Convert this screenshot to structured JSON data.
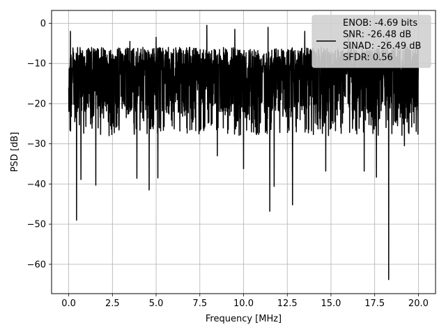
{
  "chart_data": {
    "type": "line",
    "title": "",
    "xlabel": "Frequency [MHz]",
    "ylabel": "PSD [dB]",
    "xlim": [
      -0.98,
      20.98
    ],
    "ylim": [
      -67.3,
      3.2
    ],
    "xticks": [
      0.0,
      2.5,
      5.0,
      7.5,
      10.0,
      12.5,
      15.0,
      17.5,
      20.0
    ],
    "xtick_labels": [
      "0.0",
      "2.5",
      "5.0",
      "7.5",
      "10.0",
      "12.5",
      "15.0",
      "17.5",
      "20.0"
    ],
    "yticks": [
      0,
      -10,
      -20,
      -30,
      -40,
      -50,
      -60
    ],
    "ytick_labels": [
      "0",
      "−10",
      "−20",
      "−30",
      "−40",
      "−50",
      "−60"
    ],
    "grid": true,
    "legend_position": "top-right",
    "series": [
      {
        "color": "#000000",
        "band_upper_peaks": [
          [
            0.0,
            0.0
          ],
          [
            0.1,
            -2.0
          ],
          [
            3.5,
            -4.5
          ],
          [
            5.0,
            -3.5
          ],
          [
            7.9,
            -0.5
          ],
          [
            9.5,
            -1.5
          ],
          [
            11.4,
            -1.0
          ],
          [
            13.5,
            -2.0
          ],
          [
            16.0,
            -3.0
          ],
          [
            18.2,
            -3.5
          ],
          [
            20.0,
            -4.5
          ]
        ],
        "band_lower_dips": [
          [
            0.45,
            -49.0
          ],
          [
            0.7,
            -38.9
          ],
          [
            1.55,
            -40.3
          ],
          [
            3.9,
            -38.6
          ],
          [
            4.6,
            -41.5
          ],
          [
            5.1,
            -38.5
          ],
          [
            8.5,
            -33.0
          ],
          [
            10.0,
            -36.2
          ],
          [
            11.5,
            -46.8
          ],
          [
            11.75,
            -40.6
          ],
          [
            12.8,
            -45.2
          ],
          [
            14.7,
            -36.8
          ],
          [
            16.9,
            -36.8
          ],
          [
            17.6,
            -38.3
          ],
          [
            18.3,
            -63.8
          ],
          [
            19.2,
            -30.5
          ]
        ],
        "band_typical_top": -6,
        "band_typical_bottom": -25
      }
    ],
    "legend": [
      "ENOB: -4.69 bits",
      "SNR: -26.48 dB",
      "SINAD: -26.49 dB",
      "SFDR: 0.56"
    ]
  }
}
